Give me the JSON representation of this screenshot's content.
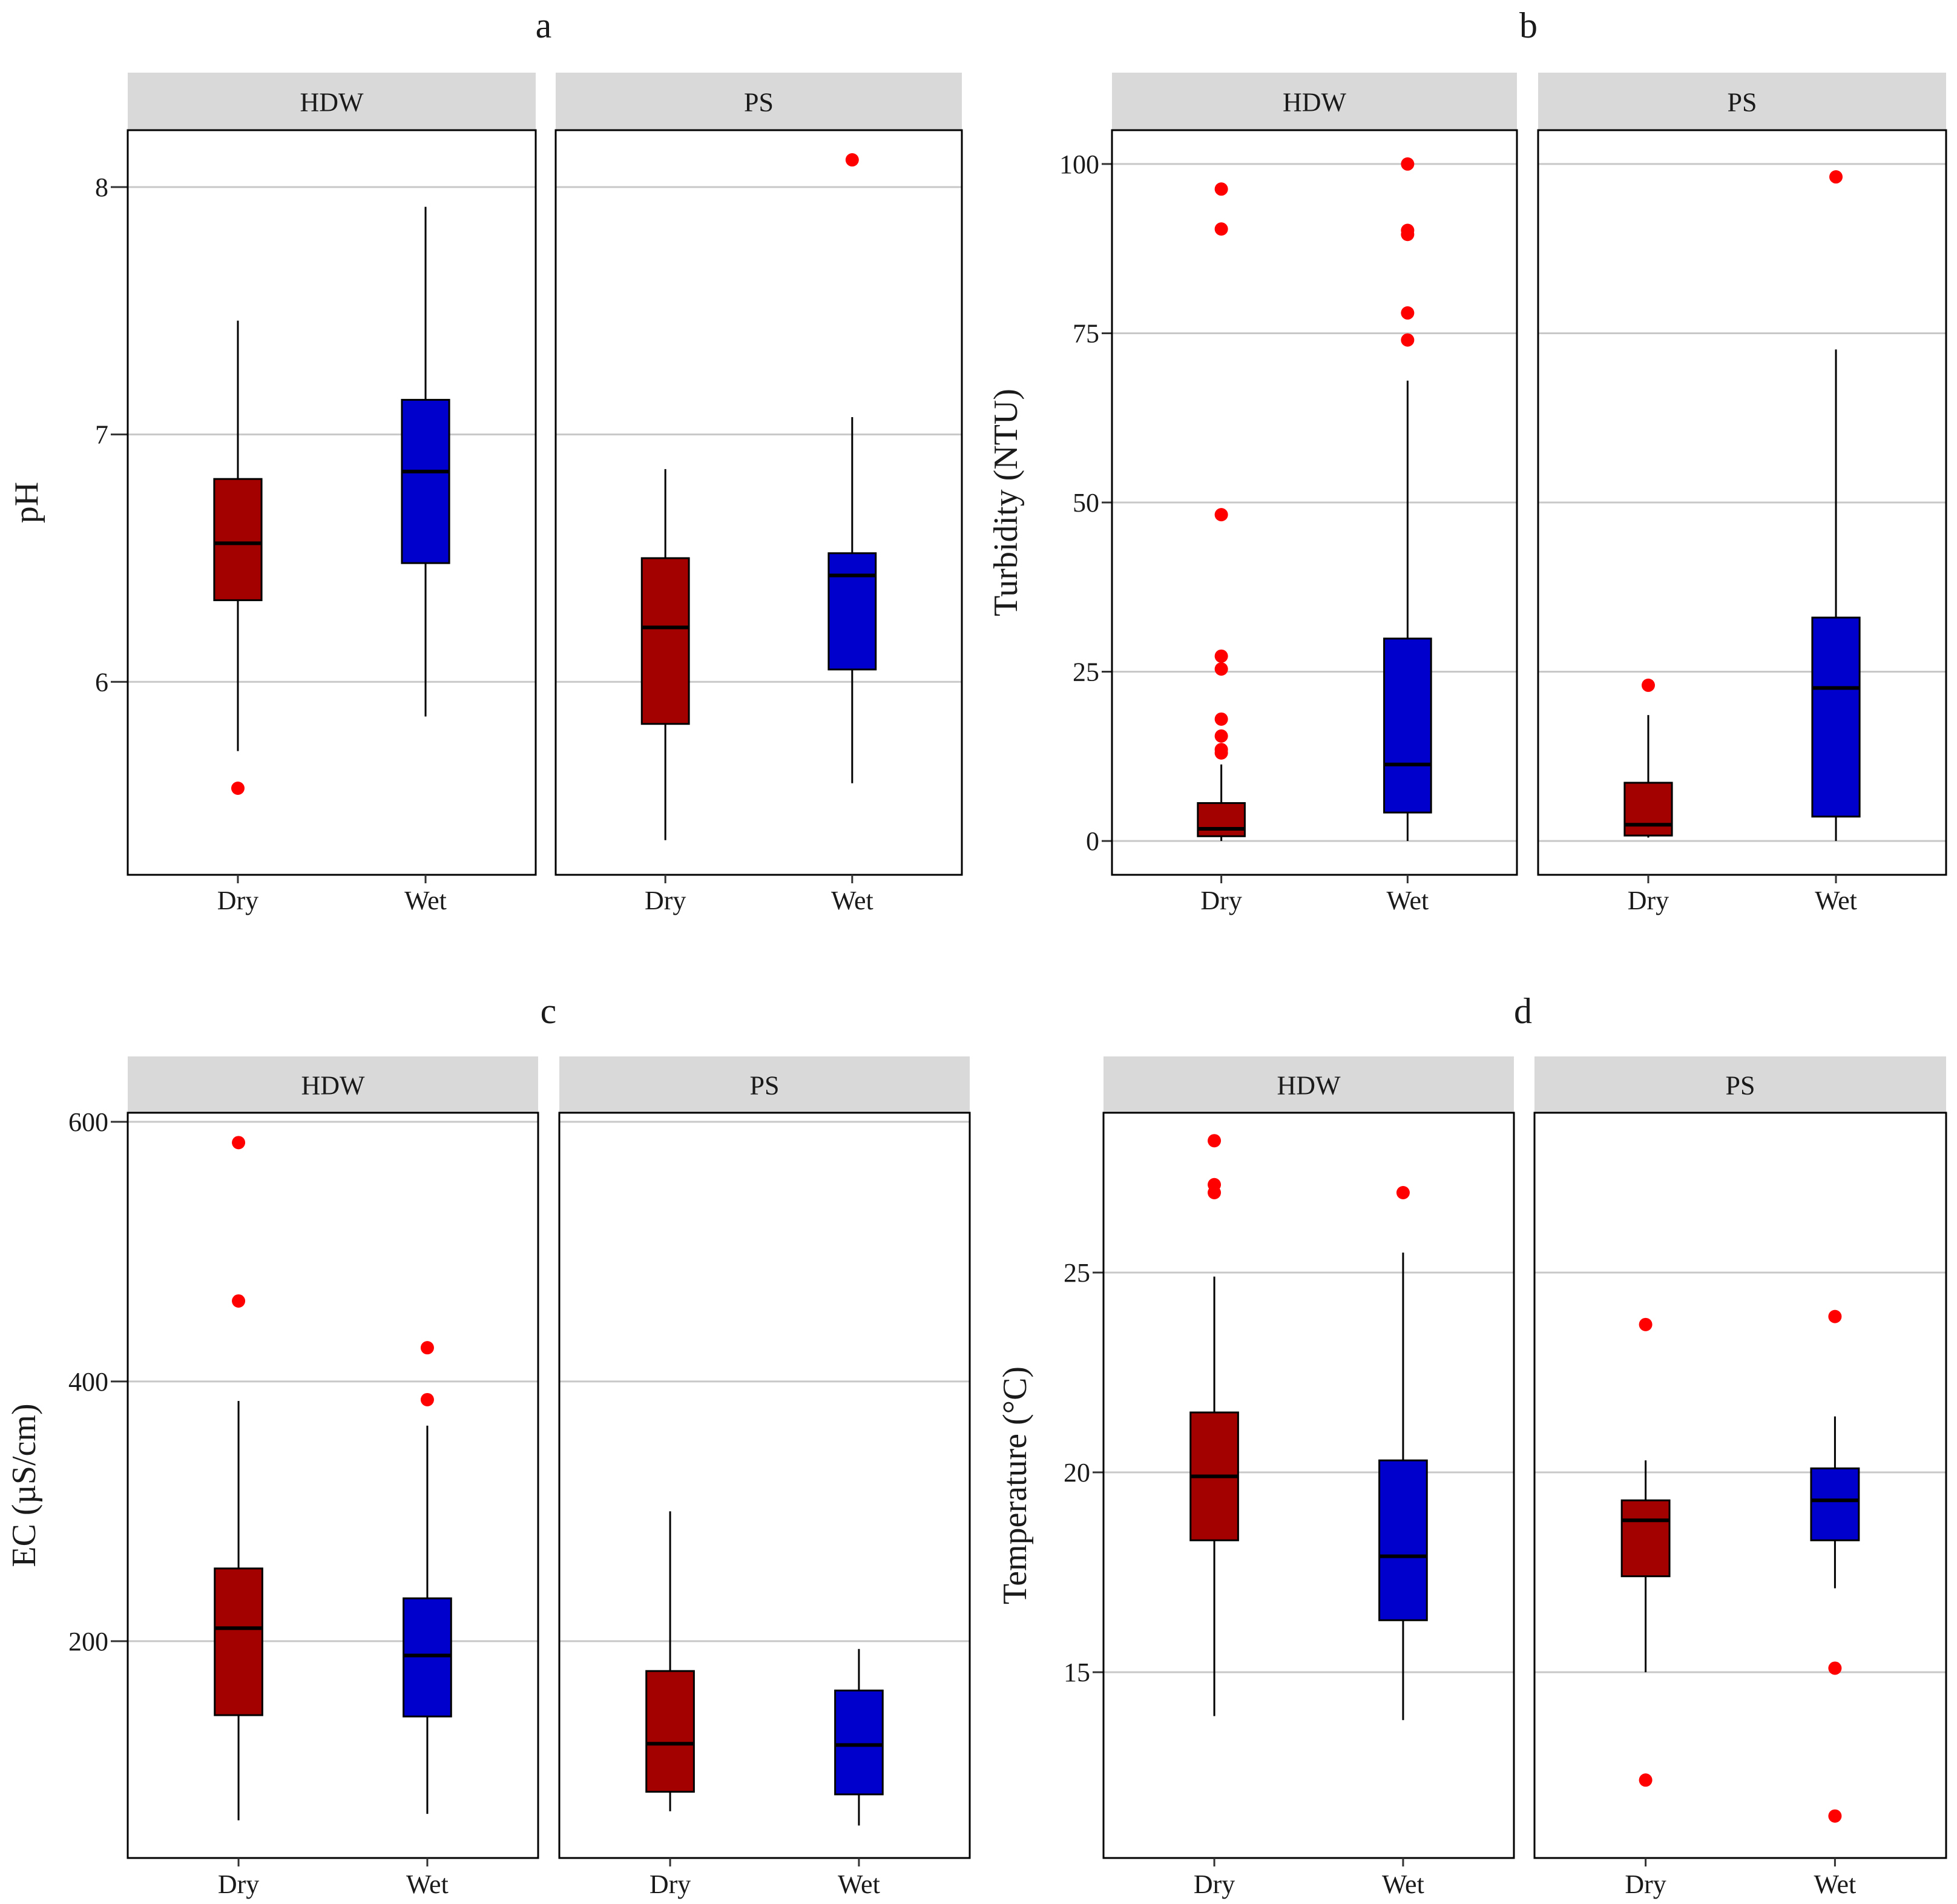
{
  "colors": {
    "dry": "#a30000",
    "wet": "#0000cc",
    "outlier": "#ff0000",
    "strip_bg": "#d9d9d9",
    "grid": "#c8c8c8"
  },
  "chart_data": [
    {
      "type": "boxplot",
      "panel": "a",
      "ylabel": "pH",
      "ylim": [
        5.22,
        8.23
      ],
      "yticks": [
        6,
        7,
        8
      ],
      "categories": [
        "Dry",
        "Wet"
      ],
      "facets": [
        {
          "name": "HDW",
          "boxes": [
            {
              "category": "Dry",
              "whisker_low": 5.72,
              "q1": 6.33,
              "median": 6.56,
              "q3": 6.82,
              "whisker_high": 7.46,
              "outliers": [
                5.57
              ]
            },
            {
              "category": "Wet",
              "whisker_low": 5.86,
              "q1": 6.48,
              "median": 6.85,
              "q3": 7.14,
              "whisker_high": 7.92,
              "outliers": []
            }
          ]
        },
        {
          "name": "PS",
          "boxes": [
            {
              "category": "Dry",
              "whisker_low": 5.36,
              "q1": 5.83,
              "median": 6.22,
              "q3": 6.5,
              "whisker_high": 6.86,
              "outliers": []
            },
            {
              "category": "Wet",
              "whisker_low": 5.59,
              "q1": 6.05,
              "median": 6.43,
              "q3": 6.52,
              "whisker_high": 7.07,
              "outliers": [
                8.11
              ]
            }
          ]
        }
      ]
    },
    {
      "type": "boxplot",
      "panel": "b",
      "ylabel": "Turbidity (NTU)",
      "ylim": [
        -5,
        105
      ],
      "yticks": [
        0,
        25,
        50,
        75,
        100
      ],
      "categories": [
        "Dry",
        "Wet"
      ],
      "facets": [
        {
          "name": "HDW",
          "boxes": [
            {
              "category": "Dry",
              "whisker_low": 0,
              "q1": 0.7,
              "median": 1.8,
              "q3": 5.6,
              "whisker_high": 11.3,
              "outliers": [
                13.0,
                13.5,
                15.5,
                18.0,
                25.4,
                27.3,
                48.2,
                90.4,
                96.3
              ]
            },
            {
              "category": "Wet",
              "whisker_low": 0,
              "q1": 4.2,
              "median": 11.3,
              "q3": 29.9,
              "whisker_high": 68.0,
              "outliers": [
                74.0,
                78.0,
                89.6,
                90.2,
                100.0
              ]
            }
          ]
        },
        {
          "name": "PS",
          "boxes": [
            {
              "category": "Dry",
              "whisker_low": 0.5,
              "q1": 0.8,
              "median": 2.4,
              "q3": 8.6,
              "whisker_high": 18.6,
              "outliers": [
                23.0
              ]
            },
            {
              "category": "Wet",
              "whisker_low": 0,
              "q1": 3.6,
              "median": 22.6,
              "q3": 33.0,
              "whisker_high": 72.6,
              "outliers": [
                98.1
              ]
            }
          ]
        }
      ]
    },
    {
      "type": "boxplot",
      "panel": "c",
      "ylabel": "EC (µS/cm)",
      "ylim": [
        33,
        607
      ],
      "yticks": [
        200,
        400,
        600
      ],
      "categories": [
        "Dry",
        "Wet"
      ],
      "facets": [
        {
          "name": "HDW",
          "boxes": [
            {
              "category": "Dry",
              "whisker_low": 62,
              "q1": 143,
              "median": 210,
              "q3": 256,
              "whisker_high": 385,
              "outliers": [
                462,
                584
              ]
            },
            {
              "category": "Wet",
              "whisker_low": 67,
              "q1": 142,
              "median": 189,
              "q3": 233,
              "whisker_high": 366,
              "outliers": [
                386,
                426
              ]
            }
          ]
        },
        {
          "name": "PS",
          "boxes": [
            {
              "category": "Dry",
              "whisker_low": 69,
              "q1": 84,
              "median": 121,
              "q3": 177,
              "whisker_high": 300,
              "outliers": []
            },
            {
              "category": "Wet",
              "whisker_low": 58,
              "q1": 82,
              "median": 120,
              "q3": 162,
              "whisker_high": 194,
              "outliers": []
            }
          ]
        }
      ]
    },
    {
      "type": "boxplot",
      "panel": "d",
      "ylabel": "Temperature (°C)",
      "ylim": [
        10.35,
        29.0
      ],
      "yticks": [
        15,
        20,
        25
      ],
      "categories": [
        "Dry",
        "Wet"
      ],
      "facets": [
        {
          "name": "HDW",
          "boxes": [
            {
              "category": "Dry",
              "whisker_low": 13.9,
              "q1": 18.3,
              "median": 19.9,
              "q3": 21.5,
              "whisker_high": 24.9,
              "outliers": [
                27.0,
                27.2,
                28.3
              ]
            },
            {
              "category": "Wet",
              "whisker_low": 13.8,
              "q1": 16.3,
              "median": 17.9,
              "q3": 20.3,
              "whisker_high": 25.5,
              "outliers": [
                27.0
              ]
            }
          ]
        },
        {
          "name": "PS",
          "boxes": [
            {
              "category": "Dry",
              "whisker_low": 15.0,
              "q1": 17.4,
              "median": 18.8,
              "q3": 19.3,
              "whisker_high": 20.3,
              "outliers": [
                12.3,
                23.7
              ]
            },
            {
              "category": "Wet",
              "whisker_low": 17.1,
              "q1": 18.3,
              "median": 19.3,
              "q3": 20.1,
              "whisker_high": 21.4,
              "outliers": [
                11.4,
                15.1,
                23.9
              ]
            }
          ]
        }
      ]
    }
  ]
}
